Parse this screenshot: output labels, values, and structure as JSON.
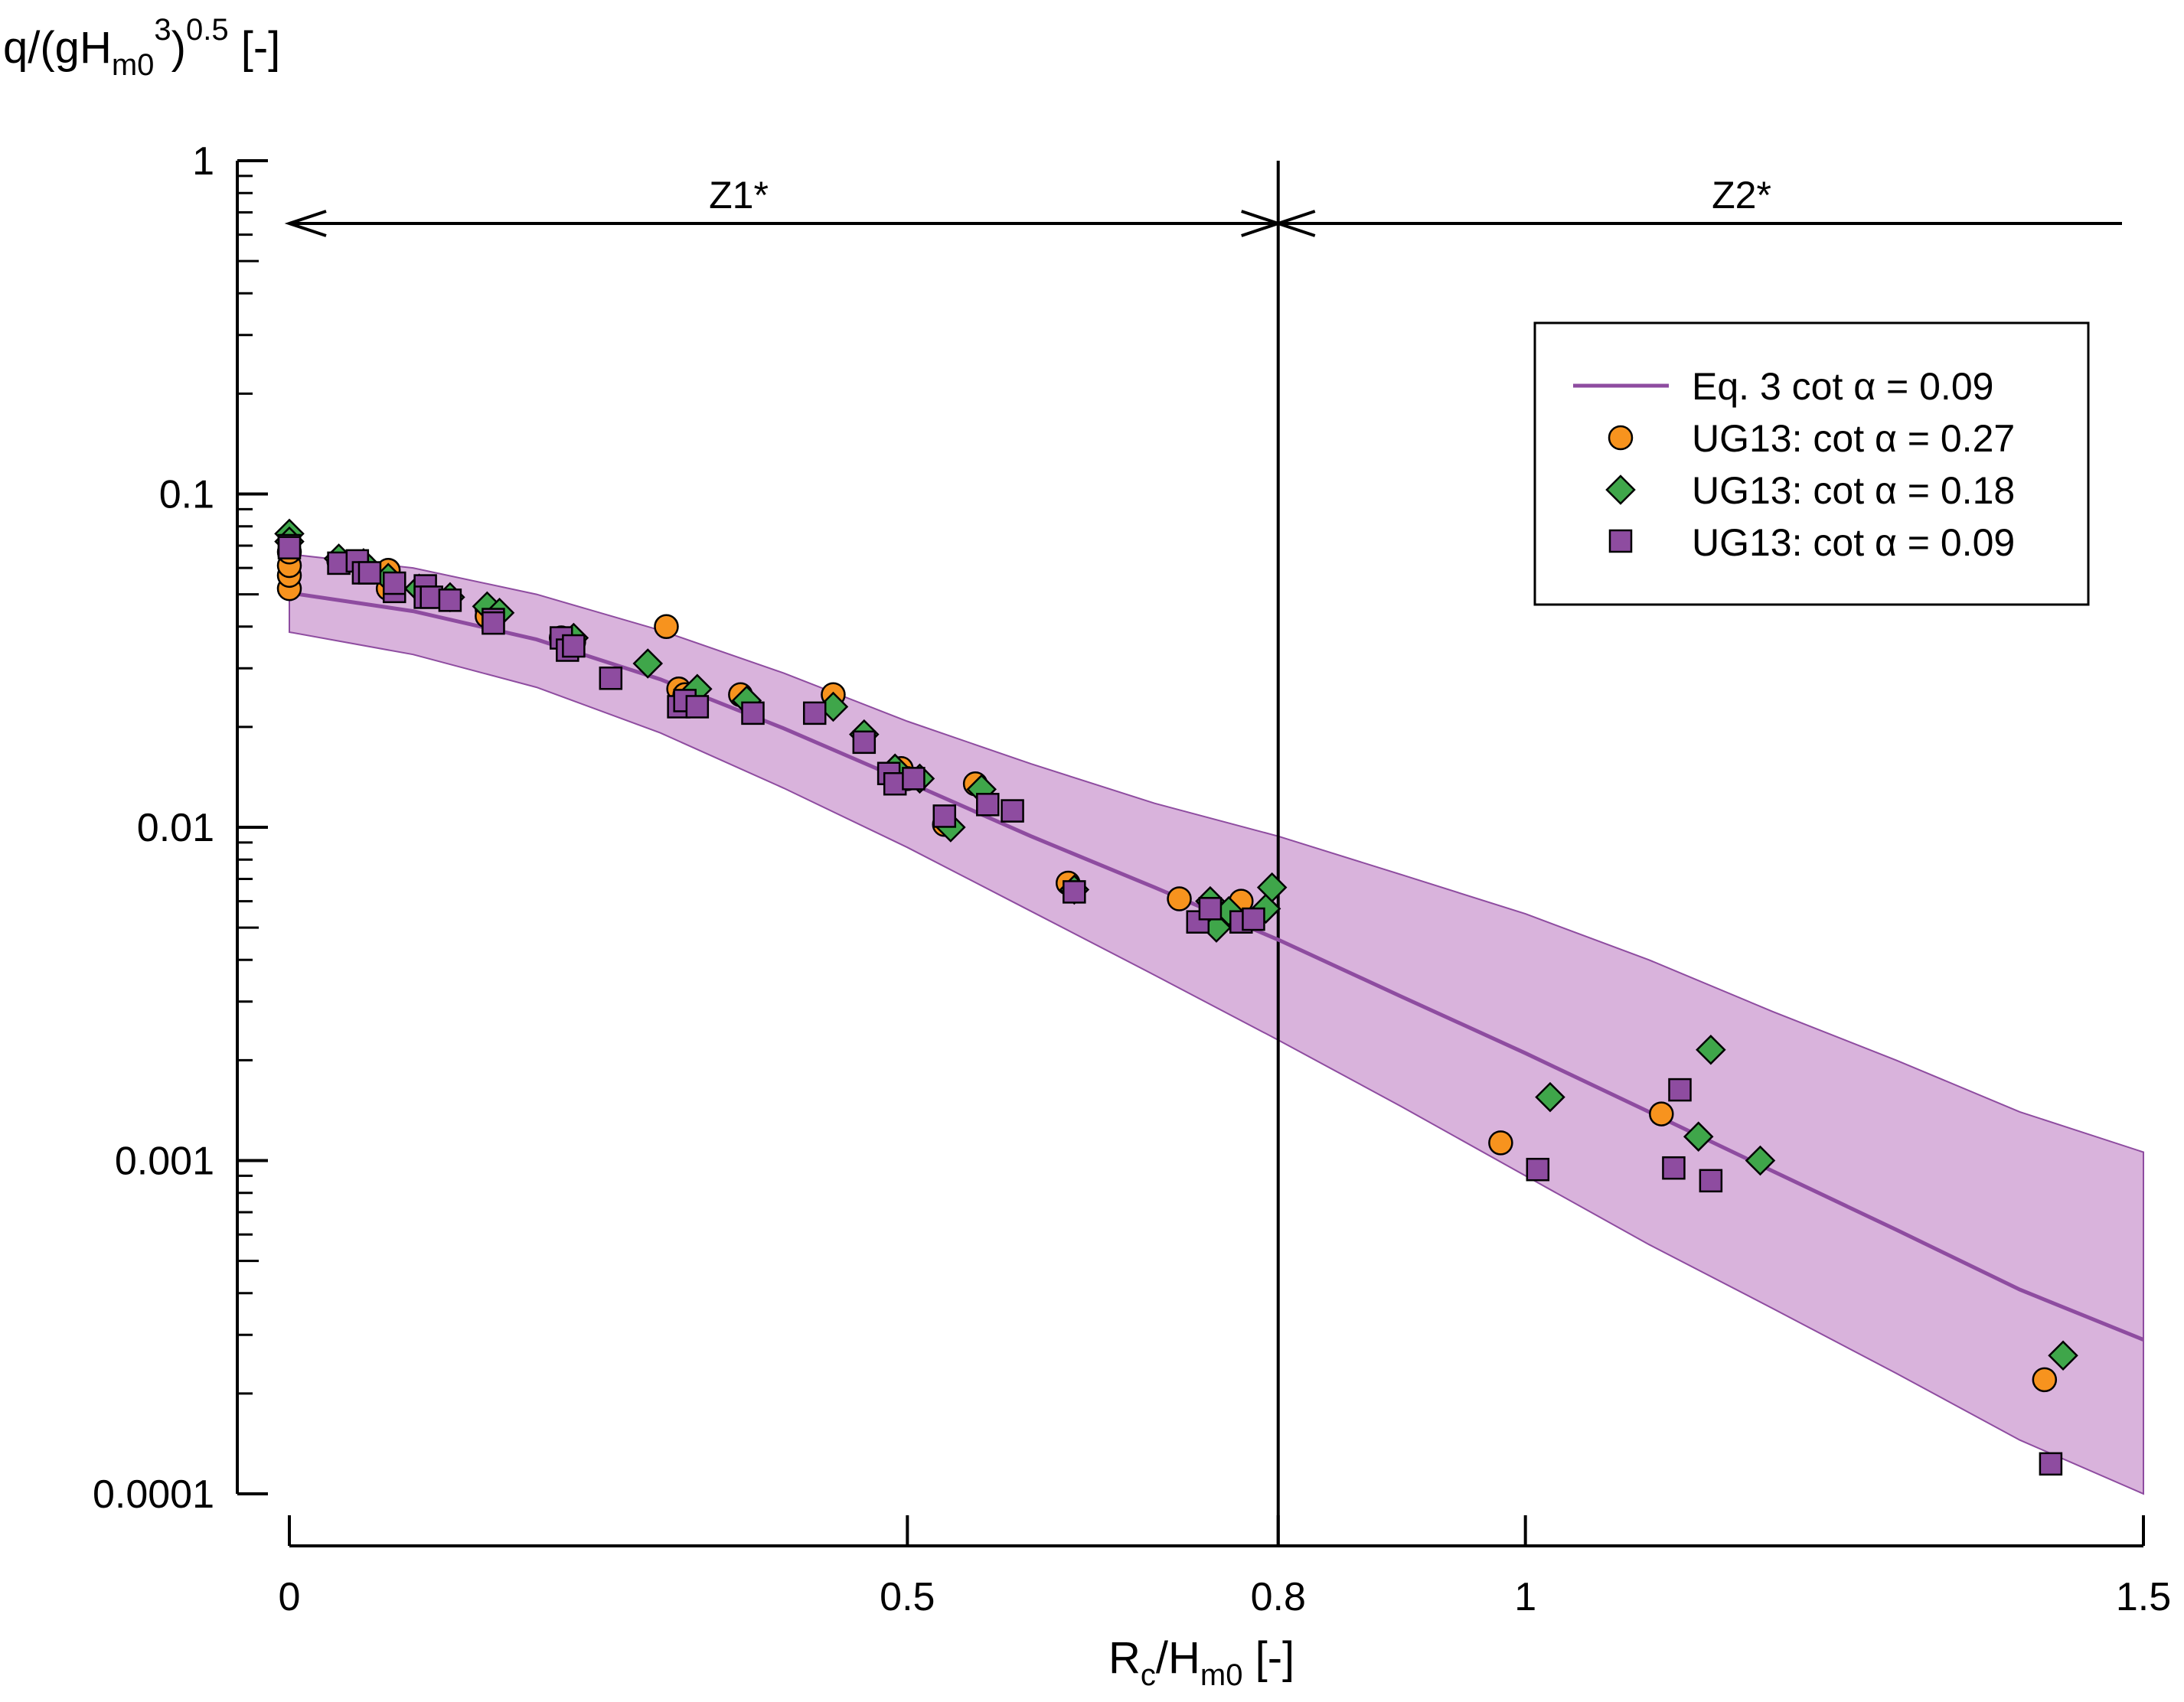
{
  "chart_data": {
    "type": "scatter",
    "title": "",
    "ylabel": {
      "main": "q/(gH",
      "sub": "m0",
      "sup": "3",
      "tail": ")",
      "exp": "0.5",
      "unit": " [-]"
    },
    "xlabel": {
      "main": "R",
      "sub1": "c",
      "mid": "/H",
      "sub2": "m0",
      "unit": " [-]"
    },
    "xlim": [
      0,
      1.5
    ],
    "ylim": [
      0.0001,
      1
    ],
    "yscale": "log",
    "x_ticks": [
      {
        "value": 0,
        "label": "0"
      },
      {
        "value": 0.5,
        "label": "0.5"
      },
      {
        "value": 0.8,
        "label": "0.8"
      },
      {
        "value": 1,
        "label": "1"
      },
      {
        "value": 1.5,
        "label": "1.5"
      }
    ],
    "y_ticks": [
      {
        "value": 1,
        "label": "1"
      },
      {
        "value": 0.1,
        "label": "0.1"
      },
      {
        "value": 0.01,
        "label": "0.01"
      },
      {
        "value": 0.001,
        "label": "0.001"
      },
      {
        "value": 0.0001,
        "label": "0.0001"
      }
    ],
    "zones": {
      "divider_x": 0.8,
      "z1_label": "Z1*",
      "z2_label": "Z2*"
    },
    "colors": {
      "curve": "#8e4ca0",
      "band": "#d9b3dc",
      "orange": "#f7931e",
      "green": "#3fa64a",
      "purple": "#8e4ca0"
    },
    "legend": {
      "position": "top-right",
      "entries": [
        {
          "label": "Eq. 3 cot α = 0.09",
          "marker": "line"
        },
        {
          "label": "UG13: cot α = 0.27",
          "marker": "circle"
        },
        {
          "label": "UG13: cot α = 0.18",
          "marker": "diamond"
        },
        {
          "label": "UG13: cot α = 0.09",
          "marker": "square"
        }
      ]
    },
    "curve": {
      "name": "Eq. 3 cot α = 0.09",
      "points": [
        [
          0,
          0.0505
        ],
        [
          0.1,
          0.0445
        ],
        [
          0.2,
          0.0366
        ],
        [
          0.3,
          0.0278
        ],
        [
          0.4,
          0.0198
        ],
        [
          0.5,
          0.0137
        ],
        [
          0.6,
          0.0094
        ],
        [
          0.7,
          0.0066
        ],
        [
          0.8,
          0.0046
        ],
        [
          0.9,
          0.0031
        ],
        [
          1.0,
          0.0021
        ],
        [
          1.1,
          0.0014
        ],
        [
          1.2,
          0.00093
        ],
        [
          1.3,
          0.00062
        ],
        [
          1.4,
          0.00041
        ],
        [
          1.5,
          0.00029
        ]
      ],
      "band_upper": [
        [
          0,
          0.066
        ],
        [
          0.1,
          0.06
        ],
        [
          0.2,
          0.05
        ],
        [
          0.3,
          0.039
        ],
        [
          0.4,
          0.029
        ],
        [
          0.5,
          0.0208
        ],
        [
          0.6,
          0.0155
        ],
        [
          0.7,
          0.0118
        ],
        [
          0.8,
          0.0094
        ],
        [
          0.9,
          0.0072
        ],
        [
          1.0,
          0.0055
        ],
        [
          1.1,
          0.004
        ],
        [
          1.2,
          0.0028
        ],
        [
          1.3,
          0.002
        ],
        [
          1.4,
          0.0014
        ],
        [
          1.5,
          0.00106
        ]
      ],
      "band_lower": [
        [
          0,
          0.0385
        ],
        [
          0.1,
          0.033
        ],
        [
          0.2,
          0.0263
        ],
        [
          0.3,
          0.0192
        ],
        [
          0.4,
          0.0131
        ],
        [
          0.5,
          0.0087
        ],
        [
          0.6,
          0.0056
        ],
        [
          0.7,
          0.0036
        ],
        [
          0.8,
          0.0023
        ],
        [
          0.9,
          0.00145
        ],
        [
          1.0,
          0.0009
        ],
        [
          1.1,
          0.00056
        ],
        [
          1.2,
          0.00036
        ],
        [
          1.3,
          0.00023
        ],
        [
          1.4,
          0.000145
        ],
        [
          1.5,
          0.0001
        ]
      ]
    },
    "series": [
      {
        "name": "UG13: cot α = 0.27",
        "marker": "circle",
        "points": [
          [
            0,
            0.052
          ],
          [
            0,
            0.057
          ],
          [
            0,
            0.061
          ],
          [
            0,
            0.067
          ],
          [
            0.04,
            0.063
          ],
          [
            0.06,
            0.061
          ],
          [
            0.08,
            0.059
          ],
          [
            0.08,
            0.052
          ],
          [
            0.11,
            0.05
          ],
          [
            0.16,
            0.045
          ],
          [
            0.16,
            0.043
          ],
          [
            0.22,
            0.037
          ],
          [
            0.23,
            0.036
          ],
          [
            0.305,
            0.04
          ],
          [
            0.315,
            0.026
          ],
          [
            0.32,
            0.025
          ],
          [
            0.365,
            0.025
          ],
          [
            0.44,
            0.025
          ],
          [
            0.495,
            0.015
          ],
          [
            0.5,
            0.014
          ],
          [
            0.53,
            0.0102
          ],
          [
            0.555,
            0.0135
          ],
          [
            0.63,
            0.0068
          ],
          [
            0.72,
            0.0061
          ],
          [
            0.77,
            0.006
          ],
          [
            0.98,
            0.00113
          ],
          [
            1.11,
            0.00138
          ],
          [
            1.42,
            0.00022
          ]
        ]
      },
      {
        "name": "UG13: cot α = 0.18",
        "marker": "diamond",
        "points": [
          [
            0,
            0.076
          ],
          [
            0,
            0.072
          ],
          [
            0.04,
            0.064
          ],
          [
            0.06,
            0.062
          ],
          [
            0.08,
            0.056
          ],
          [
            0.105,
            0.052
          ],
          [
            0.13,
            0.049
          ],
          [
            0.16,
            0.046
          ],
          [
            0.17,
            0.044
          ],
          [
            0.23,
            0.037
          ],
          [
            0.29,
            0.031
          ],
          [
            0.33,
            0.026
          ],
          [
            0.37,
            0.024
          ],
          [
            0.44,
            0.023
          ],
          [
            0.465,
            0.019
          ],
          [
            0.49,
            0.015
          ],
          [
            0.51,
            0.014
          ],
          [
            0.535,
            0.01
          ],
          [
            0.56,
            0.013
          ],
          [
            0.635,
            0.0065
          ],
          [
            0.745,
            0.006
          ],
          [
            0.75,
            0.005
          ],
          [
            0.76,
            0.0056
          ],
          [
            0.79,
            0.0057
          ],
          [
            0.795,
            0.0066
          ],
          [
            1.02,
            0.00155
          ],
          [
            1.15,
            0.00215
          ],
          [
            1.14,
            0.00118
          ],
          [
            1.19,
            0.001
          ],
          [
            1.435,
            0.00026
          ]
        ]
      },
      {
        "name": "UG13: cot α = 0.09",
        "marker": "square",
        "points": [
          [
            0,
            0.07
          ],
          [
            0,
            0.069
          ],
          [
            0.04,
            0.062
          ],
          [
            0.055,
            0.063
          ],
          [
            0.06,
            0.058
          ],
          [
            0.065,
            0.058
          ],
          [
            0.085,
            0.051
          ],
          [
            0.085,
            0.054
          ],
          [
            0.11,
            0.053
          ],
          [
            0.11,
            0.049
          ],
          [
            0.115,
            0.049
          ],
          [
            0.13,
            0.048
          ],
          [
            0.165,
            0.042
          ],
          [
            0.165,
            0.041
          ],
          [
            0.22,
            0.037
          ],
          [
            0.225,
            0.034
          ],
          [
            0.23,
            0.035
          ],
          [
            0.26,
            0.028
          ],
          [
            0.315,
            0.023
          ],
          [
            0.32,
            0.024
          ],
          [
            0.33,
            0.023
          ],
          [
            0.375,
            0.022
          ],
          [
            0.425,
            0.022
          ],
          [
            0.465,
            0.018
          ],
          [
            0.485,
            0.0145
          ],
          [
            0.49,
            0.0135
          ],
          [
            0.505,
            0.014
          ],
          [
            0.53,
            0.0108
          ],
          [
            0.565,
            0.0117
          ],
          [
            0.585,
            0.0112
          ],
          [
            0.635,
            0.0064
          ],
          [
            0.735,
            0.0052
          ],
          [
            0.745,
            0.0057
          ],
          [
            0.77,
            0.0052
          ],
          [
            0.78,
            0.0053
          ],
          [
            1.01,
            0.00094
          ],
          [
            1.12,
            0.00095
          ],
          [
            1.125,
            0.00163
          ],
          [
            1.15,
            0.00087
          ],
          [
            1.425,
            0.000123
          ]
        ]
      }
    ]
  }
}
